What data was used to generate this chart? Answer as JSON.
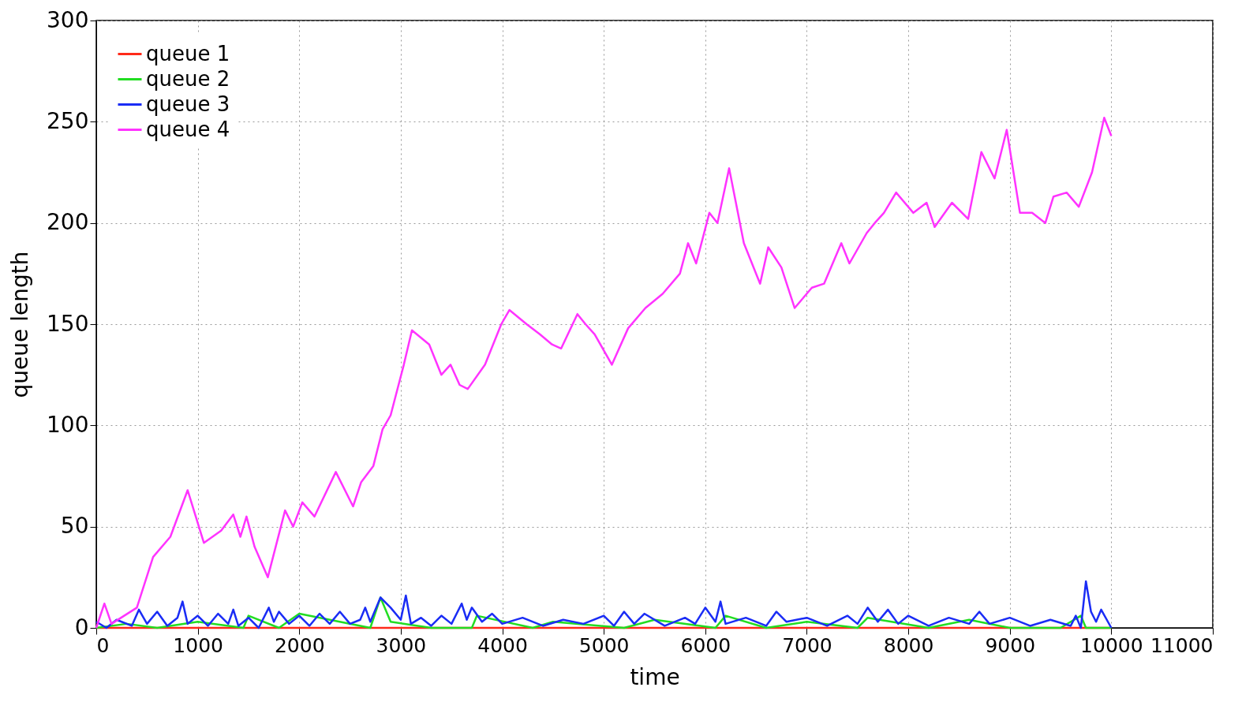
{
  "chart_data": {
    "type": "line",
    "xlabel": "time",
    "ylabel": "queue length",
    "xlim": [
      0,
      11000
    ],
    "ylim": [
      0,
      300
    ],
    "xticks": [
      0,
      1000,
      2000,
      3000,
      4000,
      5000,
      6000,
      7000,
      8000,
      9000,
      10000,
      11000
    ],
    "yticks": [
      0,
      50,
      100,
      150,
      200,
      250,
      300
    ],
    "grid": true,
    "legend": "top left",
    "line_style": "solid",
    "marker": "none",
    "series": [
      {
        "name": "queue 1",
        "color": "#ff2a1a",
        "x": [
          0,
          1000,
          2000,
          3000,
          4000,
          5000,
          6000,
          7000,
          8000,
          9000,
          10000
        ],
        "values": [
          0,
          0,
          0,
          0,
          0,
          0,
          0,
          0,
          0,
          0,
          0
        ]
      },
      {
        "name": "queue 2",
        "color": "#22dd22",
        "x": [
          0,
          300,
          600,
          1000,
          1450,
          1500,
          1800,
          2000,
          2700,
          2800,
          2900,
          3300,
          3700,
          3750,
          4300,
          4500,
          5200,
          5500,
          6100,
          6200,
          6600,
          7000,
          7500,
          7600,
          8200,
          8600,
          9000,
          9500,
          9700,
          9750,
          10000
        ],
        "values": [
          0,
          2,
          0,
          3,
          0,
          6,
          0,
          7,
          0,
          15,
          3,
          0,
          0,
          6,
          0,
          3,
          0,
          4,
          0,
          6,
          0,
          3,
          0,
          5,
          0,
          4,
          0,
          0,
          6,
          0,
          0
        ]
      },
      {
        "name": "queue 3",
        "color": "#1a2cf5",
        "x": [
          0,
          100,
          200,
          350,
          420,
          500,
          600,
          700,
          800,
          850,
          900,
          1000,
          1100,
          1200,
          1300,
          1350,
          1400,
          1500,
          1600,
          1700,
          1750,
          1800,
          1900,
          2000,
          2100,
          2200,
          2300,
          2400,
          2500,
          2600,
          2650,
          2700,
          2800,
          2900,
          3000,
          3050,
          3100,
          3200,
          3300,
          3400,
          3500,
          3600,
          3650,
          3700,
          3800,
          3900,
          4000,
          4200,
          4400,
          4600,
          4800,
          5000,
          5100,
          5200,
          5300,
          5400,
          5600,
          5800,
          5900,
          6000,
          6100,
          6150,
          6200,
          6400,
          6600,
          6700,
          6800,
          7000,
          7200,
          7400,
          7500,
          7600,
          7700,
          7800,
          7900,
          8000,
          8200,
          8400,
          8600,
          8700,
          8800,
          9000,
          9200,
          9400,
          9600,
          9650,
          9700,
          9750,
          9800,
          9850,
          9900,
          10000
        ],
        "values": [
          3,
          0,
          4,
          1,
          9,
          2,
          8,
          1,
          5,
          13,
          2,
          6,
          1,
          7,
          2,
          9,
          1,
          5,
          0,
          10,
          3,
          8,
          2,
          6,
          1,
          7,
          2,
          8,
          2,
          4,
          10,
          3,
          15,
          10,
          4,
          16,
          2,
          5,
          1,
          6,
          2,
          12,
          4,
          10,
          3,
          7,
          2,
          5,
          1,
          4,
          2,
          6,
          1,
          8,
          2,
          7,
          1,
          5,
          2,
          10,
          3,
          13,
          2,
          5,
          1,
          8,
          3,
          5,
          1,
          6,
          2,
          10,
          3,
          9,
          2,
          6,
          1,
          5,
          2,
          8,
          2,
          5,
          1,
          4,
          1,
          6,
          0,
          23,
          8,
          3,
          9,
          0
        ]
      },
      {
        "name": "queue 4",
        "color": "#ff33ff",
        "x": [
          0,
          80,
          150,
          400,
          560,
          730,
          900,
          1060,
          1230,
          1350,
          1420,
          1480,
          1560,
          1690,
          1860,
          1940,
          2030,
          2150,
          2360,
          2530,
          2610,
          2730,
          2820,
          2900,
          3030,
          3110,
          3280,
          3400,
          3490,
          3580,
          3660,
          3830,
          3990,
          4070,
          4240,
          4370,
          4490,
          4580,
          4740,
          4820,
          4910,
          5080,
          5240,
          5410,
          5580,
          5750,
          5830,
          5910,
          6040,
          6120,
          6235,
          6380,
          6540,
          6620,
          6750,
          6880,
          7050,
          7170,
          7340,
          7420,
          7590,
          7670,
          7760,
          7880,
          8050,
          8180,
          8260,
          8430,
          8590,
          8720,
          8850,
          8970,
          9100,
          9220,
          9350,
          9430,
          9560,
          9680,
          9810,
          9930,
          10000
        ],
        "values": [
          0,
          12,
          2,
          10,
          35,
          45,
          68,
          42,
          48,
          56,
          45,
          55,
          40,
          25,
          58,
          50,
          62,
          55,
          77,
          60,
          72,
          80,
          98,
          105,
          130,
          147,
          140,
          125,
          130,
          120,
          118,
          130,
          150,
          157,
          150,
          145,
          140,
          138,
          155,
          150,
          145,
          130,
          148,
          158,
          165,
          175,
          190,
          180,
          205,
          200,
          227,
          190,
          170,
          188,
          178,
          158,
          168,
          170,
          190,
          180,
          195,
          200,
          205,
          215,
          205,
          210,
          198,
          210,
          202,
          235,
          222,
          246,
          205,
          205,
          200,
          213,
          215,
          208,
          225,
          252,
          243
        ]
      }
    ]
  }
}
